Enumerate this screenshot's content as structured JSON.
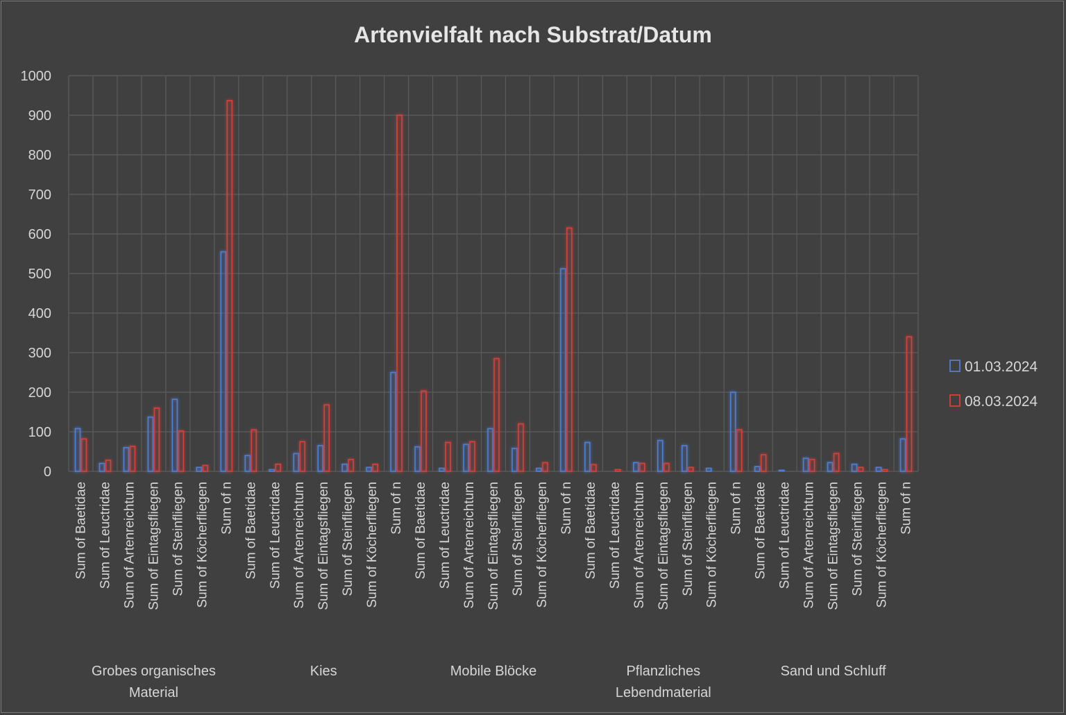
{
  "chart_data": {
    "type": "bar",
    "title": "Artenvielfalt nach Substrat/Datum",
    "ylim": [
      0,
      1000
    ],
    "yticks": [
      "0",
      "100",
      "200",
      "300",
      "400",
      "500",
      "600",
      "700",
      "800",
      "900",
      "1000"
    ],
    "grid": true,
    "legend_position": "right",
    "groups": [
      {
        "name_lines": [
          "Grobes organisches",
          "Material"
        ],
        "categories": [
          "Sum of Baetidae",
          "Sum of Leuctridae",
          "Sum of Artenreichtum",
          "Sum of Eintagsfliegen",
          "Sum of Steinfliegen",
          "Sum of Köcherfliegen",
          "Sum of n"
        ]
      },
      {
        "name_lines": [
          "Kies"
        ],
        "categories": [
          "Sum of Baetidae",
          "Sum of Leuctridae",
          "Sum of Artenreichtum",
          "Sum of Eintagsfliegen",
          "Sum of Steinfliegen",
          "Sum of Köcherfliegen",
          "Sum of n"
        ]
      },
      {
        "name_lines": [
          "Mobile Blöcke"
        ],
        "categories": [
          "Sum of Baetidae",
          "Sum of Leuctridae",
          "Sum of Artenreichtum",
          "Sum of Eintagsfliegen",
          "Sum of Steinfliegen",
          "Sum of Köcherfliegen",
          "Sum of n"
        ]
      },
      {
        "name_lines": [
          "Pflanzliches",
          "Lebendmaterial"
        ],
        "categories": [
          "Sum of Baetidae",
          "Sum of Leuctridae",
          "Sum of Artenreichtum",
          "Sum of Eintagsfliegen",
          "Sum of Steinfliegen",
          "Sum of Köcherfliegen",
          "Sum of n"
        ]
      },
      {
        "name_lines": [
          "Sand und Schluff"
        ],
        "categories": [
          "Sum of Baetidae",
          "Sum of Leuctridae",
          "Sum of Artenreichtum",
          "Sum of Eintagsfliegen",
          "Sum of Steinfliegen",
          "Sum of Köcherfliegen",
          "Sum of n"
        ]
      }
    ],
    "series": [
      {
        "name": "01.03.2024",
        "color": "#4f7fd6",
        "values": [
          108,
          20,
          60,
          137,
          182,
          10,
          555,
          40,
          5,
          45,
          65,
          18,
          10,
          250,
          62,
          8,
          68,
          108,
          58,
          8,
          512,
          73,
          0,
          22,
          78,
          65,
          8,
          200,
          12,
          3,
          33,
          22,
          18,
          10,
          82
        ]
      },
      {
        "name": "08.03.2024",
        "color": "#d8403a",
        "values": [
          82,
          28,
          63,
          160,
          102,
          15,
          937,
          105,
          18,
          75,
          168,
          30,
          18,
          900,
          203,
          73,
          75,
          285,
          120,
          22,
          615,
          17,
          5,
          20,
          20,
          10,
          0,
          105,
          42,
          0,
          30,
          45,
          10,
          5,
          340
        ]
      }
    ]
  }
}
